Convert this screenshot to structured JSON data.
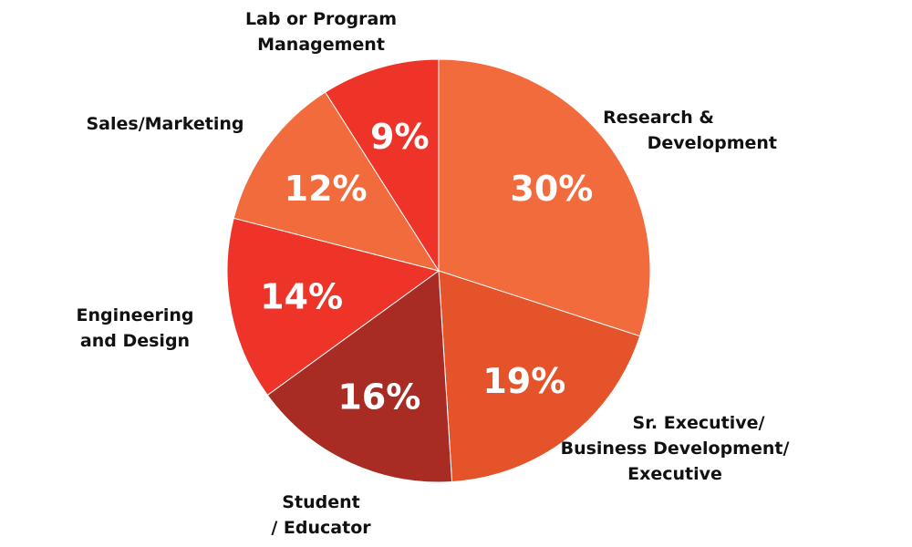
{
  "chart_data": {
    "type": "pie",
    "start": "12 o'clock",
    "direction": "clockwise",
    "slices": [
      {
        "label": "Research & Development",
        "value": 30,
        "display": "30%",
        "color": "#F26B3C"
      },
      {
        "label": "Sr. Executive/ Business Development/ Executive",
        "value": 19,
        "display": "19%",
        "color": "#E5532A"
      },
      {
        "label": "Student / Educator",
        "value": 16,
        "display": "16%",
        "color": "#A82B24"
      },
      {
        "label": "Engineering and Design",
        "value": 14,
        "display": "14%",
        "color": "#EE3329"
      },
      {
        "label": "Sales/Marketing",
        "value": 12,
        "display": "12%",
        "color": "#F26B3C"
      },
      {
        "label": "Lab or Program Management",
        "value": 9,
        "display": "9%",
        "color": "#EE3329"
      }
    ]
  }
}
